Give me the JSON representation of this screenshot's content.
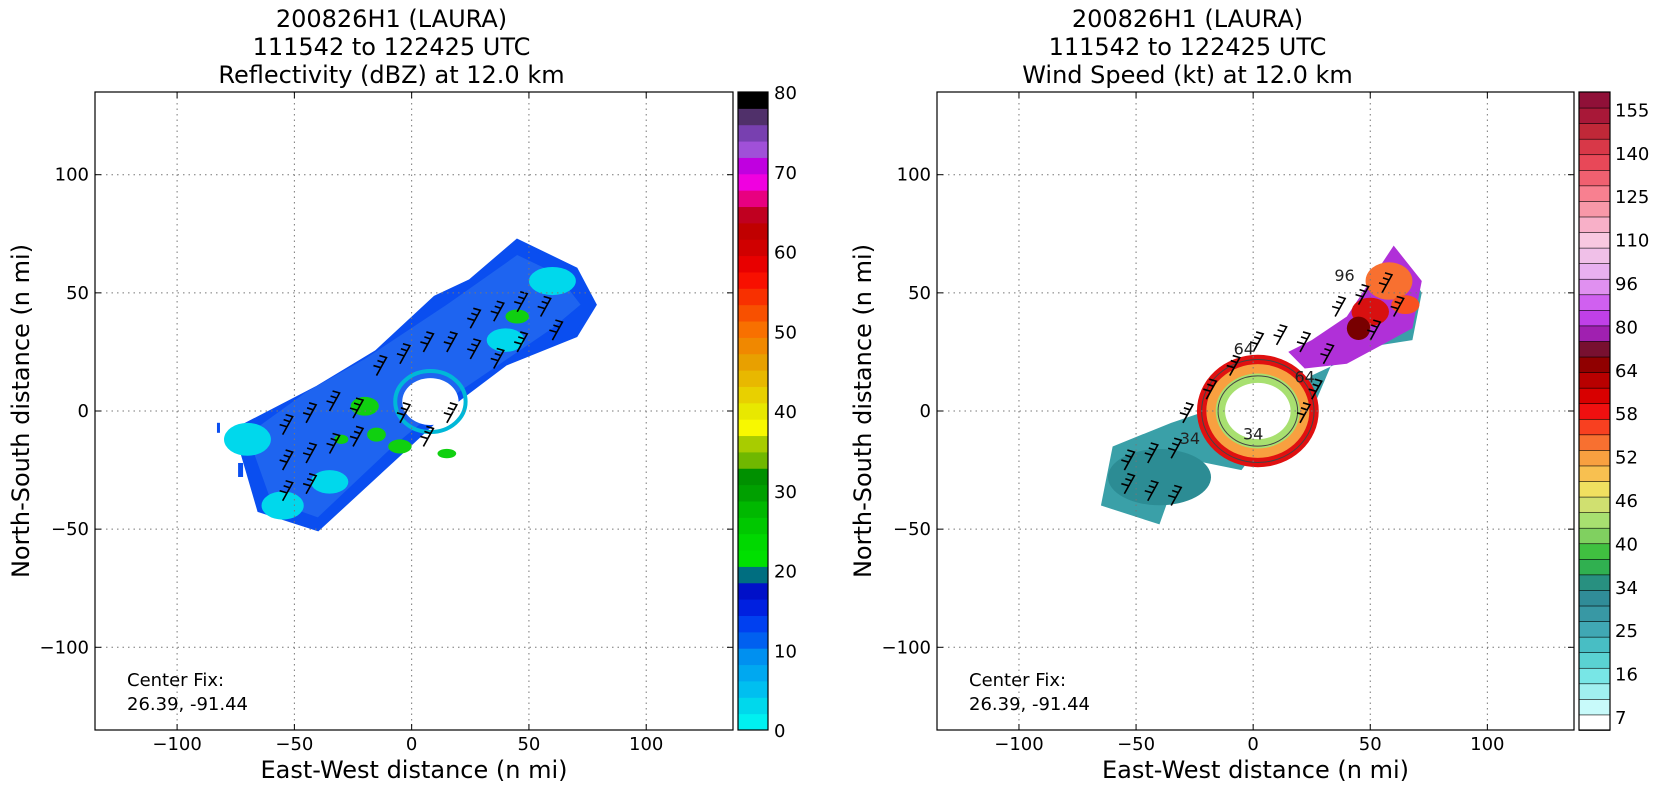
{
  "chart_data": [
    {
      "type": "heatmap",
      "title_lines": [
        "200826H1 (LAURA)",
        "111542 to 122425 UTC",
        "Reflectivity (dBZ) at 12.0 km"
      ],
      "xlabel": "East-West distance (n mi)",
      "ylabel": "North-South distance (n mi)",
      "xlim": [
        -135,
        137
      ],
      "ylim": [
        -135,
        135
      ],
      "xticks": [
        -100,
        -50,
        0,
        50,
        100
      ],
      "yticks": [
        -100,
        -50,
        0,
        50,
        100
      ],
      "xtick_labels": [
        "−100",
        "−50",
        "0",
        "50",
        "100"
      ],
      "ytick_labels": [
        "−100",
        "−50",
        "0",
        "50",
        "100"
      ],
      "grid": true,
      "annotation_lines": [
        "Center Fix:",
        "26.39, -91.44"
      ],
      "colorbar": {
        "min": 0,
        "max": 80,
        "ticks": [
          0,
          10,
          20,
          30,
          40,
          50,
          60,
          70,
          80
        ],
        "colors": [
          "#00f0f0",
          "#00d8ec",
          "#00bff0",
          "#00a8f0",
          "#0090f0",
          "#0060f0",
          "#0040f0",
          "#0020e0",
          "#0010c8",
          "#006e80",
          "#00e000",
          "#00d800",
          "#00c800",
          "#00b800",
          "#00a000",
          "#009000",
          "#70b800",
          "#a8cc00",
          "#f8f800",
          "#e8e800",
          "#e8d000",
          "#e8b800",
          "#e8a000",
          "#f08800",
          "#f87000",
          "#f85000",
          "#f83000",
          "#f81000",
          "#e80000",
          "#d00000",
          "#c00000",
          "#c00020",
          "#e80080",
          "#f000e0",
          "#c000e0",
          "#a050d8",
          "#7840b0",
          "#50306a",
          "#000000"
        ]
      },
      "wind_barbs": true
    },
    {
      "type": "heatmap",
      "title_lines": [
        "200826H1 (LAURA)",
        "111542 to 122425 UTC",
        "Wind Speed (kt) at 12.0 km"
      ],
      "xlabel": "East-West distance (n mi)",
      "ylabel": "North-South distance (n mi)",
      "xlim": [
        -135,
        137
      ],
      "ylim": [
        -135,
        135
      ],
      "xticks": [
        -100,
        -50,
        0,
        50,
        100
      ],
      "yticks": [
        -100,
        -50,
        0,
        50,
        100
      ],
      "xtick_labels": [
        "−100",
        "−50",
        "0",
        "50",
        "100"
      ],
      "ytick_labels": [
        "−100",
        "−50",
        "0",
        "50",
        "100"
      ],
      "grid": true,
      "annotation_lines": [
        "Center Fix:",
        "26.39, -91.44"
      ],
      "contour_labels": [
        "34",
        "34",
        "64",
        "64",
        "96"
      ],
      "colorbar": {
        "tick_labels": [
          "7",
          "16",
          "25",
          "34",
          "40",
          "46",
          "52",
          "58",
          "64",
          "80",
          "96",
          "110",
          "125",
          "140",
          "155"
        ],
        "colors": [
          "#ffffff",
          "#c8fafa",
          "#a0f0f0",
          "#78e6e6",
          "#5ad2d2",
          "#48bec4",
          "#40a8b4",
          "#3898a4",
          "#308c98",
          "#289080",
          "#30b050",
          "#40c040",
          "#80d060",
          "#a8e070",
          "#d0e070",
          "#f0e060",
          "#f8c050",
          "#f8a040",
          "#f87030",
          "#f84020",
          "#f01010",
          "#d80000",
          "#b80000",
          "#900000",
          "#781030",
          "#a020b0",
          "#c040e8",
          "#d060f0",
          "#e090f0",
          "#e8b0f0",
          "#f0c0e8",
          "#f8c8e0",
          "#f8b0c8",
          "#f898a8",
          "#f88090",
          "#f06070",
          "#e84858",
          "#d83848",
          "#c02838",
          "#a81838",
          "#901038"
        ]
      },
      "wind_barbs": true
    }
  ]
}
